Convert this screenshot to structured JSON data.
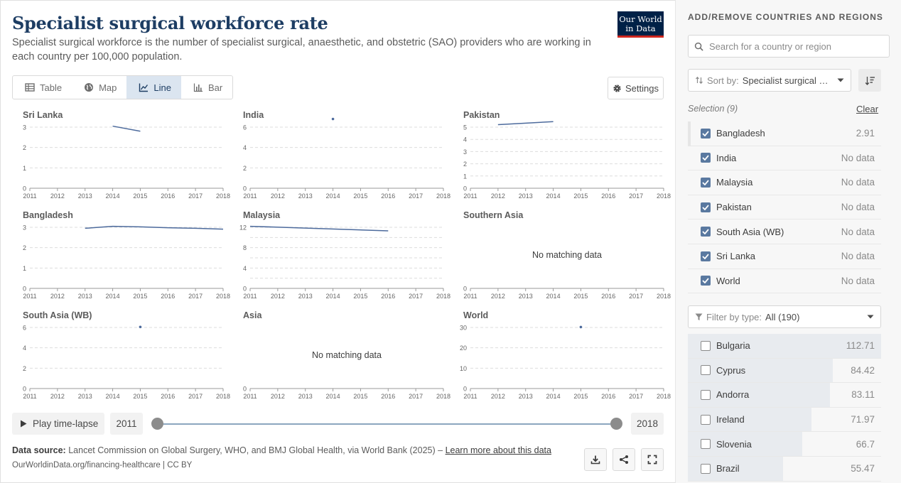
{
  "header": {
    "title": "Specialist surgical workforce rate",
    "subtitle": "Specialist surgical workforce is the number of specialist surgical, anaesthetic, and obstetric (SAO) providers who are working in each country per 100,000 population.",
    "logo_line1": "Our World",
    "logo_line2": "in Data"
  },
  "tabs": [
    {
      "label": "Table",
      "icon": "table-icon",
      "active": false
    },
    {
      "label": "Map",
      "icon": "globe-icon",
      "active": false
    },
    {
      "label": "Line",
      "icon": "line-chart-icon",
      "active": true
    },
    {
      "label": "Bar",
      "icon": "bar-chart-icon",
      "active": false
    }
  ],
  "settings_label": "Settings",
  "colors": {
    "line": "#4c6a9c",
    "axis": "#9a9a9a",
    "grid": "#dddddd",
    "tick_text": "#666666"
  },
  "no_data_text": "No matching data",
  "chart_data": [
    {
      "type": "line",
      "title": "Sri Lanka",
      "x_ticks": [
        "2011",
        "2012",
        "2013",
        "2014",
        "2015",
        "2016",
        "2017",
        "2018"
      ],
      "xlim": [
        2011,
        2018
      ],
      "ylim": [
        0,
        3
      ],
      "y_ticks": [
        "0",
        "1",
        "2",
        "3"
      ],
      "series": [
        {
          "x": [
            2014,
            2015
          ],
          "values": [
            3.05,
            2.8
          ]
        }
      ]
    },
    {
      "type": "line",
      "title": "India",
      "x_ticks": [
        "2011",
        "2012",
        "2013",
        "2014",
        "2015",
        "2016",
        "2017",
        "2018"
      ],
      "xlim": [
        2011,
        2018
      ],
      "ylim": [
        0,
        6
      ],
      "y_ticks": [
        "0",
        "2",
        "4",
        "6"
      ],
      "series": [
        {
          "x": [
            2014
          ],
          "values": [
            6.8
          ]
        }
      ]
    },
    {
      "type": "line",
      "title": "Pakistan",
      "x_ticks": [
        "2011",
        "2012",
        "2013",
        "2014",
        "2015",
        "2016",
        "2017",
        "2018"
      ],
      "xlim": [
        2011,
        2018
      ],
      "ylim": [
        0,
        5
      ],
      "y_ticks": [
        "0",
        "1",
        "2",
        "3",
        "4",
        "5"
      ],
      "series": [
        {
          "x": [
            2012,
            2014
          ],
          "values": [
            5.2,
            5.45
          ]
        }
      ]
    },
    {
      "type": "line",
      "title": "Bangladesh",
      "x_ticks": [
        "2011",
        "2012",
        "2013",
        "2014",
        "2015",
        "2016",
        "2017",
        "2018"
      ],
      "xlim": [
        2011,
        2018
      ],
      "ylim": [
        0,
        3
      ],
      "y_ticks": [
        "0",
        "1",
        "2",
        "3"
      ],
      "series": [
        {
          "x": [
            2013,
            2014,
            2015,
            2016,
            2017,
            2018
          ],
          "values": [
            2.95,
            3.05,
            3.02,
            2.98,
            2.95,
            2.91
          ]
        }
      ]
    },
    {
      "type": "line",
      "title": "Malaysia",
      "x_ticks": [
        "2011",
        "2012",
        "2013",
        "2014",
        "2015",
        "2016",
        "2017",
        "2018"
      ],
      "xlim": [
        2011,
        2018
      ],
      "ylim": [
        0,
        12
      ],
      "y_ticks": [
        "0",
        "4",
        "8",
        "12"
      ],
      "y_ticks_minor": [
        2,
        6,
        10
      ],
      "series": [
        {
          "x": [
            2011,
            2016
          ],
          "values": [
            12.2,
            11.3
          ]
        }
      ]
    },
    {
      "type": "line",
      "title": "Southern Asia",
      "x_ticks": [
        "2011",
        "2012",
        "2013",
        "2014",
        "2015",
        "2016",
        "2017",
        "2018"
      ],
      "xlim": [
        2011,
        2018
      ],
      "ylim": [
        0,
        1
      ],
      "y_ticks": [
        "0"
      ],
      "empty": true,
      "series": []
    },
    {
      "type": "line",
      "title": "South Asia (WB)",
      "x_ticks": [
        "2011",
        "2012",
        "2013",
        "2014",
        "2015",
        "2016",
        "2017",
        "2018"
      ],
      "xlim": [
        2011,
        2018
      ],
      "ylim": [
        0,
        6
      ],
      "y_ticks": [
        "0",
        "2",
        "4",
        "6"
      ],
      "series": [
        {
          "x": [
            2015
          ],
          "values": [
            6.05
          ]
        }
      ]
    },
    {
      "type": "line",
      "title": "Asia",
      "x_ticks": [
        "2011",
        "2012",
        "2013",
        "2014",
        "2015",
        "2016",
        "2017",
        "2018"
      ],
      "xlim": [
        2011,
        2018
      ],
      "ylim": [
        0,
        1
      ],
      "y_ticks": [
        "0"
      ],
      "empty": true,
      "series": []
    },
    {
      "type": "line",
      "title": "World",
      "x_ticks": [
        "2011",
        "2012",
        "2013",
        "2014",
        "2015",
        "2016",
        "2017",
        "2018"
      ],
      "xlim": [
        2011,
        2018
      ],
      "ylim": [
        0,
        30
      ],
      "y_ticks": [
        "0",
        "10",
        "20",
        "30"
      ],
      "series": [
        {
          "x": [
            2015
          ],
          "values": [
            30.2
          ]
        }
      ]
    }
  ],
  "timeline": {
    "play_label": "Play time-lapse",
    "start_year": "2011",
    "end_year": "2018"
  },
  "footer": {
    "source_label": "Data source:",
    "source_text": "Lancet Commission on Global Surgery, WHO, and BMJ Global Health, via World Bank (2025) –",
    "learn_more": "Learn more about this data",
    "url": "OurWorldinData.org/financing-healthcare | CC BY"
  },
  "sidebar": {
    "title": "ADD/REMOVE COUNTRIES AND REGIONS",
    "search_placeholder": "Search for a country or region",
    "sort_label": "Sort by:",
    "sort_value": "Specialist surgical workforce rate",
    "selection_label": "Selection (9)",
    "clear_label": "Clear",
    "selected": [
      {
        "name": "Bangladesh",
        "value": "2.91",
        "checked": true
      },
      {
        "name": "India",
        "value": "No data",
        "checked": true
      },
      {
        "name": "Malaysia",
        "value": "No data",
        "checked": true
      },
      {
        "name": "Pakistan",
        "value": "No data",
        "checked": true
      },
      {
        "name": "South Asia (WB)",
        "value": "No data",
        "checked": true
      },
      {
        "name": "Sri Lanka",
        "value": "No data",
        "checked": true
      },
      {
        "name": "World",
        "value": "No data",
        "checked": true
      }
    ],
    "filter_label": "Filter by type:",
    "filter_value": "All (190)",
    "available": [
      {
        "name": "Bulgaria",
        "value": "112.71",
        "bar_fraction": 1.0
      },
      {
        "name": "Cyprus",
        "value": "84.42",
        "bar_fraction": 0.749
      },
      {
        "name": "Andorra",
        "value": "83.11",
        "bar_fraction": 0.737
      },
      {
        "name": "Ireland",
        "value": "71.97",
        "bar_fraction": 0.639
      },
      {
        "name": "Slovenia",
        "value": "66.7",
        "bar_fraction": 0.592
      },
      {
        "name": "Brazil",
        "value": "55.47",
        "bar_fraction": 0.492
      }
    ]
  }
}
